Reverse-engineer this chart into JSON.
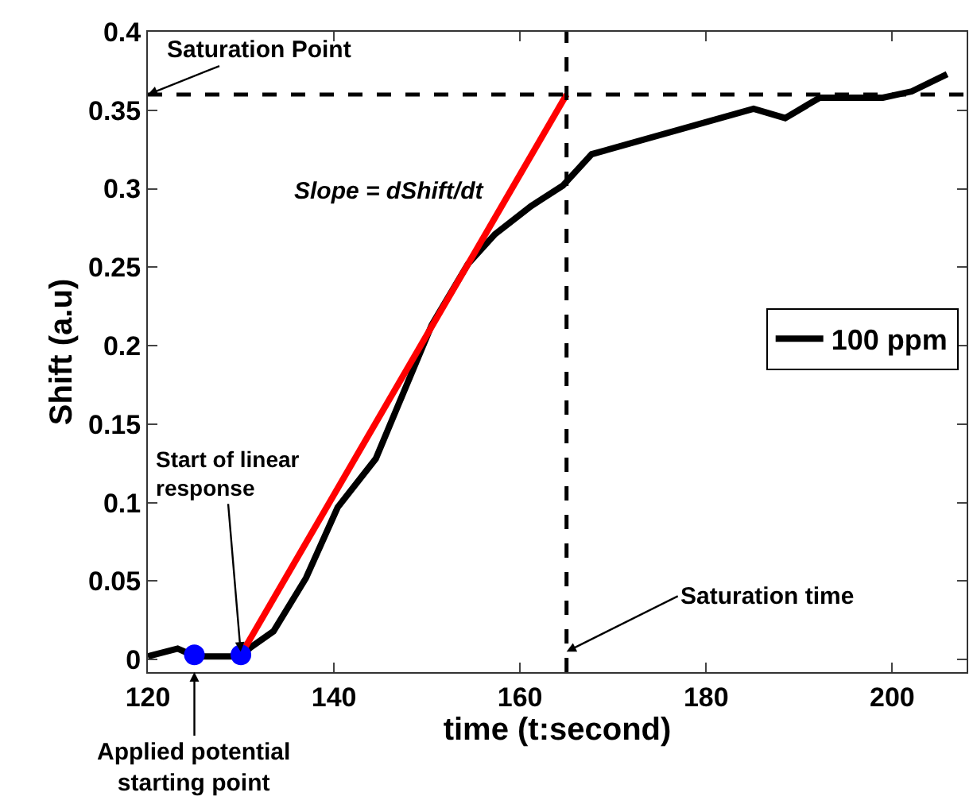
{
  "chart_data": {
    "type": "line",
    "xlabel": "time (t:second)",
    "ylabel": "Shift (a.u)",
    "xlim": [
      120,
      208
    ],
    "ylim": [
      -0.008,
      0.4
    ],
    "xticks": [
      120,
      140,
      160,
      180,
      200
    ],
    "yticks": [
      0,
      0.05,
      0.1,
      0.15,
      0.2,
      0.25,
      0.3,
      0.35,
      0.4
    ],
    "legend": "right",
    "line_style": "solid",
    "marker": "none",
    "series": [
      {
        "name": "100 ppm",
        "color": "#000000",
        "x": [
          120,
          123.2,
          125.1,
          130,
          131.1,
          133.5,
          137,
          140.4,
          144.5,
          150.5,
          154.4,
          157.3,
          161.2,
          164.6,
          167.7,
          185.1,
          188.5,
          192.2,
          199,
          202.1,
          205.9
        ],
        "values": [
          0.002,
          0.007,
          0.002,
          0.002,
          0.008,
          0.018,
          0.052,
          0.097,
          0.128,
          0.213,
          0.252,
          0.271,
          0.289,
          0.302,
          0.322,
          0.351,
          0.345,
          0.358,
          0.358,
          0.362,
          0.373
        ]
      },
      {
        "type": "line",
        "color": "#ff0000",
        "x": [
          130,
          165
        ],
        "values": [
          0.003,
          0.36
        ]
      },
      {
        "type": "scatter",
        "color": "#0000ff",
        "marker": "circle",
        "x": [
          125,
          130
        ],
        "values": [
          0.003,
          0.003
        ]
      }
    ],
    "ref_lines": [
      {
        "axis": "x",
        "value": 165,
        "color": "#000000",
        "line_style": "dashed"
      },
      {
        "axis": "y",
        "value": 0.36,
        "color": "#000000",
        "line_style": "dashed"
      }
    ],
    "annotations": [
      {
        "text": "Saturation Point",
        "x": 120,
        "y": 0.36
      },
      "Slope = dShift/dt",
      {
        "text": "Start of linear\nresponse",
        "x": 130,
        "y": 0.003
      },
      {
        "text": "Applied potential\nstarting point",
        "x": 125,
        "y": -0.008
      },
      {
        "text": "Saturation time",
        "x": 165,
        "y": 0.005
      }
    ]
  }
}
